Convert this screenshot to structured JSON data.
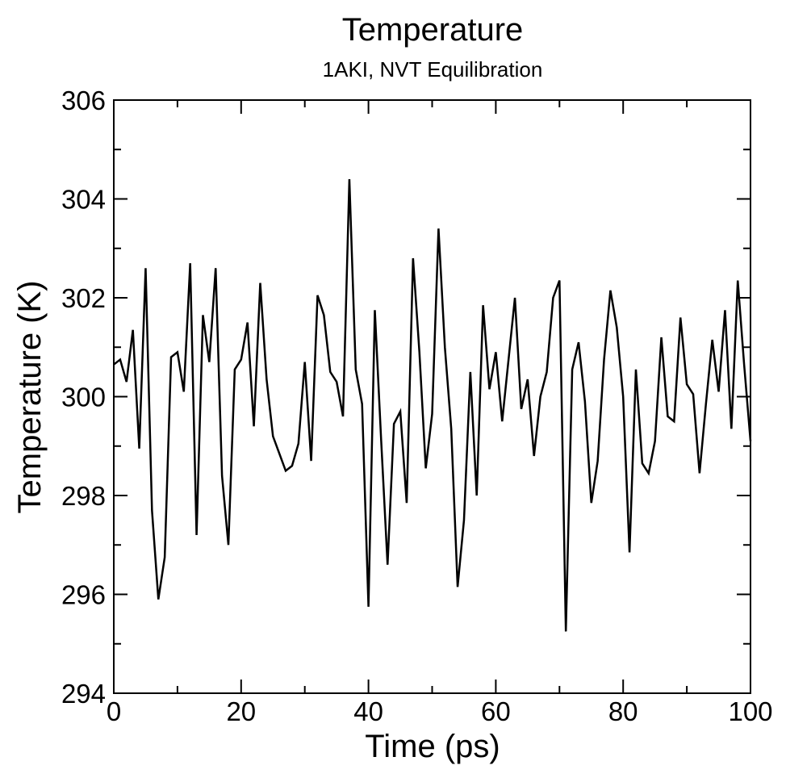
{
  "chart_data": {
    "type": "line",
    "title": "Temperature",
    "subtitle": "1AKI, NVT Equilibration",
    "xlabel": "Time (ps)",
    "ylabel": "Temperature (K)",
    "xlim": [
      0,
      100
    ],
    "ylim": [
      294,
      306
    ],
    "x_major_ticks": [
      0,
      20,
      40,
      60,
      80,
      100
    ],
    "x_minor_ticks": [
      10,
      30,
      50,
      70,
      90
    ],
    "y_major_ticks": [
      294,
      296,
      298,
      300,
      302,
      304,
      306
    ],
    "y_minor_ticks": [
      295,
      297,
      299,
      301,
      303,
      305
    ],
    "x_tick_labels": [
      "0",
      "20",
      "40",
      "60",
      "80",
      "100"
    ],
    "y_tick_labels": [
      "294",
      "296",
      "298",
      "300",
      "302",
      "304",
      "306"
    ],
    "grid": false,
    "legend": "none",
    "line_color": "#000000",
    "series": [
      {
        "x": [
          0,
          1,
          2,
          3,
          4,
          5,
          6,
          7,
          8,
          9,
          10,
          11,
          12,
          13,
          14,
          15,
          16,
          17,
          18,
          19,
          20,
          21,
          22,
          23,
          24,
          25,
          26,
          27,
          28,
          29,
          30,
          31,
          32,
          33,
          34,
          35,
          36,
          37,
          38,
          39,
          40,
          41,
          42,
          43,
          44,
          45,
          46,
          47,
          48,
          49,
          50,
          51,
          52,
          53,
          54,
          55,
          56,
          57,
          58,
          59,
          60,
          61,
          62,
          63,
          64,
          65,
          66,
          67,
          68,
          69,
          70,
          71,
          72,
          73,
          74,
          75,
          76,
          77,
          78,
          79,
          80,
          81,
          82,
          83,
          84,
          85,
          86,
          87,
          88,
          89,
          90,
          91,
          92,
          93,
          94,
          95,
          96,
          97,
          98,
          99,
          100
        ],
        "y": [
          300.65,
          300.75,
          300.3,
          301.35,
          298.95,
          302.6,
          297.7,
          295.9,
          296.75,
          300.8,
          300.9,
          300.1,
          302.7,
          297.2,
          301.65,
          300.7,
          302.6,
          298.4,
          297.0,
          300.55,
          300.75,
          301.5,
          299.4,
          302.3,
          300.35,
          299.2,
          298.85,
          298.5,
          298.6,
          299.05,
          300.7,
          298.7,
          302.05,
          301.65,
          300.5,
          300.3,
          299.6,
          304.4,
          300.55,
          299.85,
          295.75,
          301.75,
          299.1,
          296.6,
          299.45,
          299.7,
          297.85,
          302.8,
          300.9,
          298.55,
          299.65,
          303.4,
          301.0,
          299.35,
          296.15,
          297.5,
          300.5,
          298.0,
          301.85,
          300.15,
          300.9,
          299.5,
          300.75,
          302.0,
          299.75,
          300.35,
          298.8,
          300.0,
          300.5,
          302.0,
          302.35,
          295.25,
          300.55,
          301.1,
          299.9,
          297.85,
          298.7,
          300.75,
          302.15,
          301.4,
          300.0,
          296.85,
          300.55,
          298.65,
          298.45,
          299.1,
          301.2,
          299.6,
          299.5,
          301.6,
          300.25,
          300.05,
          298.45,
          299.85,
          301.15,
          300.1,
          301.75,
          299.35,
          302.35,
          300.65,
          299.1
        ]
      }
    ]
  }
}
